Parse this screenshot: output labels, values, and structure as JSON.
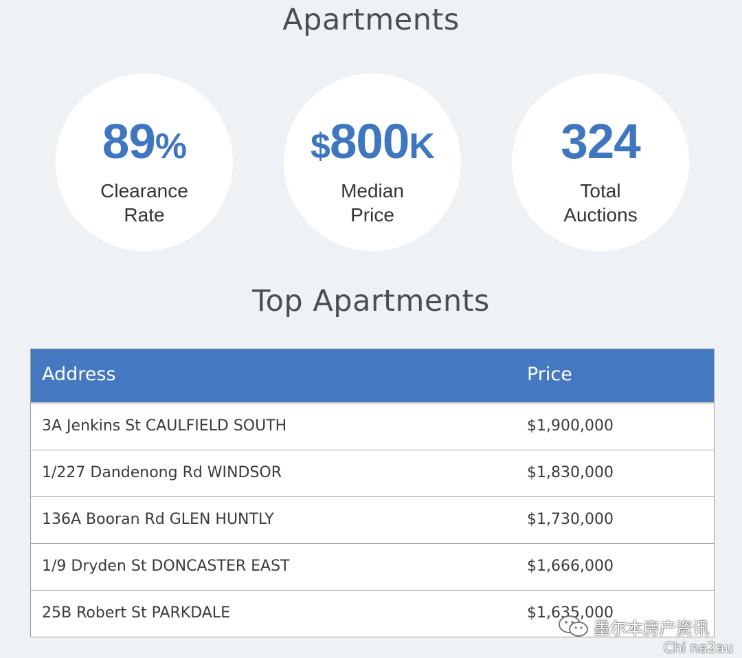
{
  "title": "Apartments",
  "stats": [
    {
      "value_main": "89",
      "value_suffix": "%",
      "value_prefix": "",
      "label_line1": "Clearance",
      "label_line2": "Rate"
    },
    {
      "value_main": "800",
      "value_suffix": "K",
      "value_prefix": "$",
      "label_line1": "Median",
      "label_line2": "Price"
    },
    {
      "value_main": "324",
      "value_suffix": "",
      "value_prefix": "",
      "label_line1": "Total",
      "label_line2": "Auctions"
    }
  ],
  "top_title": "Top Apartments",
  "table": {
    "headers": {
      "address": "Address",
      "price": "Price"
    },
    "rows": [
      {
        "address": "3A Jenkins St CAULFIELD SOUTH",
        "price": "$1,900,000"
      },
      {
        "address": "1/227 Dandenong Rd WINDSOR",
        "price": "$1,830,000"
      },
      {
        "address": "136A Booran Rd GLEN HUNTLY",
        "price": "$1,730,000"
      },
      {
        "address": "1/9 Dryden St DONCASTER EAST",
        "price": "$1,666,000"
      },
      {
        "address": "25B Robert St PARKDALE",
        "price": "$1,635,000"
      }
    ]
  },
  "watermark": {
    "line1": "墨尔本房产资讯",
    "line2": "Chi na2au",
    "icon": "wechat-icon"
  },
  "colors": {
    "accent": "#4478c1",
    "stat_value": "#3f76c0",
    "background": "#eef2f5"
  }
}
